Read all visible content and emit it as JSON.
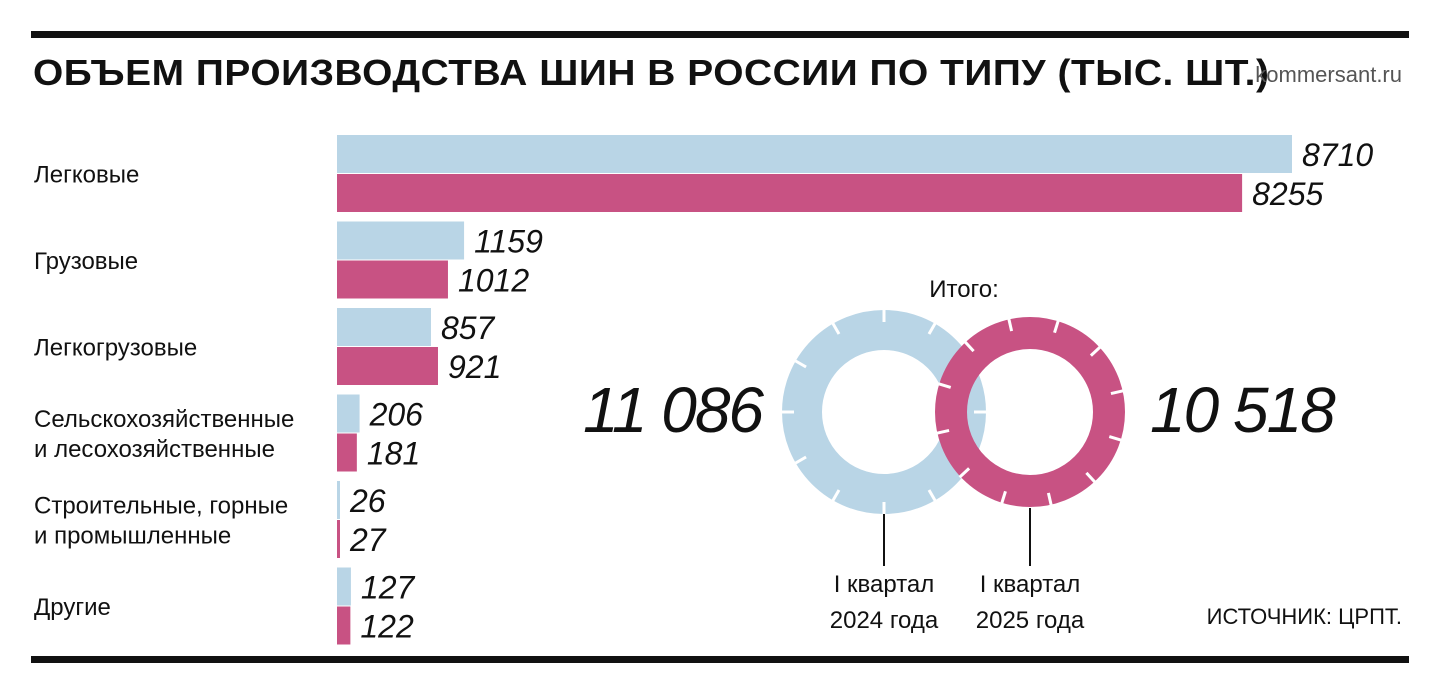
{
  "header": {
    "title": "ОБЪЕМ ПРОИЗВОДСТВА ШИН В РОССИИ ПО ТИПУ (ТЫС. ШТ.)",
    "site": "kommersant.ru"
  },
  "footer": {
    "source": "ИСТОЧНИК: ЦРПТ."
  },
  "colors": {
    "series_2024": "#b9d5e6",
    "series_2025": "#c85283",
    "rule": "#111111"
  },
  "chart_data": {
    "type": "bar",
    "orientation": "horizontal",
    "title": "ОБЪЕМ ПРОИЗВОДСТВА ШИН В РОССИИ ПО ТИПУ (ТЫС. ШТ.)",
    "categories": [
      [
        "Легковые"
      ],
      [
        "Грузовые"
      ],
      [
        "Легкогрузовые"
      ],
      [
        "Сельскохозяйственные",
        "и лесохозяйственные"
      ],
      [
        "Строительные, горные",
        "и промышленные"
      ],
      [
        "Другие"
      ]
    ],
    "series": [
      {
        "values": [
          8710,
          1159,
          857,
          206,
          26,
          127
        ]
      },
      {
        "values": [
          8255,
          1012,
          921,
          181,
          27,
          122
        ]
      }
    ],
    "xlim": [
      0,
      8710
    ],
    "totals": {
      "heading": "Итого:",
      "items": [
        {
          "value": "11 086",
          "period": [
            "I квартал",
            "2024 года"
          ]
        },
        {
          "value": "10 518",
          "period": [
            "I квартал",
            "2025 года"
          ]
        }
      ]
    }
  }
}
